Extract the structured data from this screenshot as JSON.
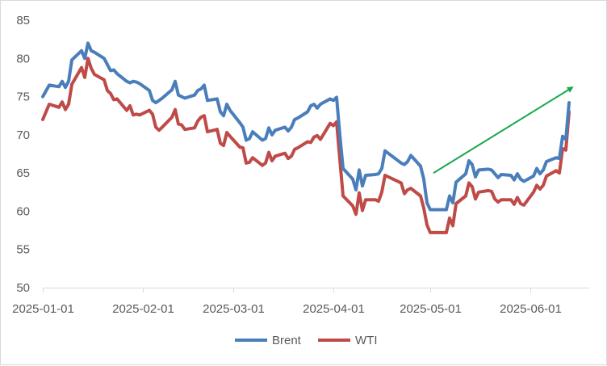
{
  "chart_data": {
    "type": "line",
    "title": "",
    "xlabel": "",
    "ylabel": "",
    "ylim": [
      50,
      85
    ],
    "yticks": [
      50,
      55,
      60,
      65,
      70,
      75,
      80,
      85
    ],
    "xlim": [
      "2025-01-01",
      "2025-06-11"
    ],
    "xticks": [
      "2025-01-01",
      "2025-02-01",
      "2025-03-01",
      "2025-04-01",
      "2025-05-01",
      "2025-06-01"
    ],
    "grid": false,
    "legend": "bottom",
    "series": [
      {
        "name": "Brent",
        "color": "#4a7ebb",
        "points": [
          [
            "2025-01-01",
            75.0
          ],
          [
            "2025-01-03",
            76.5
          ],
          [
            "2025-01-06",
            76.3
          ],
          [
            "2025-01-07",
            77.0
          ],
          [
            "2025-01-08",
            76.2
          ],
          [
            "2025-01-09",
            77.0
          ],
          [
            "2025-01-10",
            79.8
          ],
          [
            "2025-01-13",
            81.0
          ],
          [
            "2025-01-14",
            80.0
          ],
          [
            "2025-01-15",
            82.0
          ],
          [
            "2025-01-16",
            81.0
          ],
          [
            "2025-01-17",
            80.8
          ],
          [
            "2025-01-20",
            80.0
          ],
          [
            "2025-01-21",
            79.2
          ],
          [
            "2025-01-22",
            78.4
          ],
          [
            "2025-01-23",
            78.5
          ],
          [
            "2025-01-24",
            78.0
          ],
          [
            "2025-01-27",
            77.0
          ],
          [
            "2025-01-28",
            76.8
          ],
          [
            "2025-01-29",
            77.0
          ],
          [
            "2025-01-30",
            76.9
          ],
          [
            "2025-01-31",
            76.7
          ],
          [
            "2025-02-03",
            75.8
          ],
          [
            "2025-02-04",
            74.5
          ],
          [
            "2025-02-05",
            74.2
          ],
          [
            "2025-02-06",
            74.5
          ],
          [
            "2025-02-07",
            74.8
          ],
          [
            "2025-02-10",
            75.9
          ],
          [
            "2025-02-11",
            77.0
          ],
          [
            "2025-02-12",
            75.2
          ],
          [
            "2025-02-13",
            75.0
          ],
          [
            "2025-02-14",
            74.8
          ],
          [
            "2025-02-17",
            75.2
          ],
          [
            "2025-02-18",
            75.8
          ],
          [
            "2025-02-19",
            76.0
          ],
          [
            "2025-02-20",
            76.5
          ],
          [
            "2025-02-21",
            74.5
          ],
          [
            "2025-02-24",
            74.7
          ],
          [
            "2025-02-25",
            73.0
          ],
          [
            "2025-02-26",
            72.5
          ],
          [
            "2025-02-27",
            74.0
          ],
          [
            "2025-02-28",
            73.2
          ],
          [
            "2025-03-03",
            71.6
          ],
          [
            "2025-03-04",
            71.0
          ],
          [
            "2025-03-05",
            69.3
          ],
          [
            "2025-03-06",
            69.5
          ],
          [
            "2025-03-07",
            70.4
          ],
          [
            "2025-03-10",
            69.3
          ],
          [
            "2025-03-11",
            69.5
          ],
          [
            "2025-03-12",
            70.9
          ],
          [
            "2025-03-13",
            70.0
          ],
          [
            "2025-03-14",
            70.6
          ],
          [
            "2025-03-17",
            71.0
          ],
          [
            "2025-03-18",
            70.5
          ],
          [
            "2025-03-19",
            71.0
          ],
          [
            "2025-03-20",
            72.0
          ],
          [
            "2025-03-21",
            72.2
          ],
          [
            "2025-03-24",
            73.0
          ],
          [
            "2025-03-25",
            73.8
          ],
          [
            "2025-03-26",
            74.0
          ],
          [
            "2025-03-27",
            73.5
          ],
          [
            "2025-03-28",
            74.0
          ],
          [
            "2025-03-31",
            74.7
          ],
          [
            "2025-04-01",
            74.5
          ],
          [
            "2025-04-02",
            74.9
          ],
          [
            "2025-04-03",
            70.0
          ],
          [
            "2025-04-04",
            65.6
          ],
          [
            "2025-04-07",
            64.2
          ],
          [
            "2025-04-08",
            62.8
          ],
          [
            "2025-04-09",
            65.4
          ],
          [
            "2025-04-10",
            63.3
          ],
          [
            "2025-04-11",
            64.7
          ],
          [
            "2025-04-14",
            64.8
          ],
          [
            "2025-04-15",
            64.9
          ],
          [
            "2025-04-16",
            65.6
          ],
          [
            "2025-04-17",
            67.9
          ],
          [
            "2025-04-22",
            66.3
          ],
          [
            "2025-04-23",
            66.1
          ],
          [
            "2025-04-24",
            66.5
          ],
          [
            "2025-04-25",
            67.3
          ],
          [
            "2025-04-28",
            65.9
          ],
          [
            "2025-04-29",
            64.2
          ],
          [
            "2025-04-30",
            61.1
          ],
          [
            "2025-05-01",
            60.2
          ],
          [
            "2025-05-02",
            60.2
          ],
          [
            "2025-05-05",
            60.2
          ],
          [
            "2025-05-06",
            60.2
          ],
          [
            "2025-05-07",
            62.0
          ],
          [
            "2025-05-08",
            61.1
          ],
          [
            "2025-05-09",
            63.8
          ],
          [
            "2025-05-12",
            64.9
          ],
          [
            "2025-05-13",
            66.6
          ],
          [
            "2025-05-14",
            66.1
          ],
          [
            "2025-05-15",
            64.5
          ],
          [
            "2025-05-16",
            65.4
          ],
          [
            "2025-05-19",
            65.5
          ],
          [
            "2025-05-20",
            65.4
          ],
          [
            "2025-05-21",
            64.9
          ],
          [
            "2025-05-22",
            64.4
          ],
          [
            "2025-05-23",
            64.8
          ],
          [
            "2025-05-26",
            64.7
          ],
          [
            "2025-05-27",
            64.1
          ],
          [
            "2025-05-28",
            64.9
          ],
          [
            "2025-05-29",
            64.2
          ],
          [
            "2025-05-30",
            63.9
          ],
          [
            "2025-06-02",
            64.6
          ],
          [
            "2025-06-03",
            65.6
          ],
          [
            "2025-06-04",
            64.9
          ],
          [
            "2025-06-05",
            65.4
          ],
          [
            "2025-06-06",
            66.5
          ],
          [
            "2025-06-09",
            67.0
          ],
          [
            "2025-06-10",
            66.9
          ],
          [
            "2025-06-11",
            69.8
          ],
          [
            "2025-06-12",
            69.4
          ],
          [
            "2025-06-13",
            74.2
          ]
        ]
      },
      {
        "name": "WTI",
        "color": "#be4b48",
        "points": [
          [
            "2025-01-01",
            72.0
          ],
          [
            "2025-01-03",
            74.0
          ],
          [
            "2025-01-06",
            73.6
          ],
          [
            "2025-01-07",
            74.3
          ],
          [
            "2025-01-08",
            73.3
          ],
          [
            "2025-01-09",
            74.0
          ],
          [
            "2025-01-10",
            76.6
          ],
          [
            "2025-01-13",
            78.8
          ],
          [
            "2025-01-14",
            77.5
          ],
          [
            "2025-01-15",
            80.0
          ],
          [
            "2025-01-16",
            78.7
          ],
          [
            "2025-01-17",
            77.9
          ],
          [
            "2025-01-20",
            77.2
          ],
          [
            "2025-01-21",
            75.8
          ],
          [
            "2025-01-22",
            75.4
          ],
          [
            "2025-01-23",
            74.6
          ],
          [
            "2025-01-24",
            74.7
          ],
          [
            "2025-01-27",
            73.2
          ],
          [
            "2025-01-28",
            73.8
          ],
          [
            "2025-01-29",
            72.6
          ],
          [
            "2025-01-30",
            72.7
          ],
          [
            "2025-01-31",
            72.6
          ],
          [
            "2025-02-03",
            73.2
          ],
          [
            "2025-02-04",
            72.7
          ],
          [
            "2025-02-05",
            71.0
          ],
          [
            "2025-02-06",
            70.6
          ],
          [
            "2025-02-07",
            71.0
          ],
          [
            "2025-02-10",
            72.3
          ],
          [
            "2025-02-11",
            73.3
          ],
          [
            "2025-02-12",
            71.4
          ],
          [
            "2025-02-13",
            71.3
          ],
          [
            "2025-02-14",
            70.7
          ],
          [
            "2025-02-17",
            70.9
          ],
          [
            "2025-02-18",
            71.8
          ],
          [
            "2025-02-19",
            72.3
          ],
          [
            "2025-02-20",
            72.5
          ],
          [
            "2025-02-21",
            70.4
          ],
          [
            "2025-02-24",
            70.7
          ],
          [
            "2025-02-25",
            68.9
          ],
          [
            "2025-02-26",
            68.6
          ],
          [
            "2025-02-27",
            70.3
          ],
          [
            "2025-02-28",
            69.8
          ],
          [
            "2025-03-03",
            68.4
          ],
          [
            "2025-03-04",
            68.3
          ],
          [
            "2025-03-05",
            66.3
          ],
          [
            "2025-03-06",
            66.4
          ],
          [
            "2025-03-07",
            67.0
          ],
          [
            "2025-03-10",
            66.0
          ],
          [
            "2025-03-11",
            66.3
          ],
          [
            "2025-03-12",
            67.7
          ],
          [
            "2025-03-13",
            66.6
          ],
          [
            "2025-03-14",
            67.2
          ],
          [
            "2025-03-17",
            67.6
          ],
          [
            "2025-03-18",
            66.9
          ],
          [
            "2025-03-19",
            67.2
          ],
          [
            "2025-03-20",
            68.1
          ],
          [
            "2025-03-21",
            68.3
          ],
          [
            "2025-03-24",
            69.1
          ],
          [
            "2025-03-25",
            69.0
          ],
          [
            "2025-03-26",
            69.7
          ],
          [
            "2025-03-27",
            69.9
          ],
          [
            "2025-03-28",
            69.4
          ],
          [
            "2025-03-31",
            71.5
          ],
          [
            "2025-04-01",
            71.2
          ],
          [
            "2025-04-02",
            71.7
          ],
          [
            "2025-04-03",
            66.8
          ],
          [
            "2025-04-04",
            62.0
          ],
          [
            "2025-04-07",
            60.7
          ],
          [
            "2025-04-08",
            59.6
          ],
          [
            "2025-04-09",
            62.4
          ],
          [
            "2025-04-10",
            60.1
          ],
          [
            "2025-04-11",
            61.5
          ],
          [
            "2025-04-14",
            61.5
          ],
          [
            "2025-04-15",
            61.3
          ],
          [
            "2025-04-16",
            62.5
          ],
          [
            "2025-04-17",
            64.7
          ],
          [
            "2025-04-22",
            63.7
          ],
          [
            "2025-04-23",
            62.3
          ],
          [
            "2025-04-24",
            62.8
          ],
          [
            "2025-04-25",
            63.0
          ],
          [
            "2025-04-28",
            62.0
          ],
          [
            "2025-04-29",
            60.4
          ],
          [
            "2025-04-30",
            58.2
          ],
          [
            "2025-05-01",
            57.2
          ],
          [
            "2025-05-02",
            57.2
          ],
          [
            "2025-05-05",
            57.2
          ],
          [
            "2025-05-06",
            57.2
          ],
          [
            "2025-05-07",
            59.1
          ],
          [
            "2025-05-08",
            58.1
          ],
          [
            "2025-05-09",
            61.0
          ],
          [
            "2025-05-12",
            62.0
          ],
          [
            "2025-05-13",
            63.7
          ],
          [
            "2025-05-14",
            63.2
          ],
          [
            "2025-05-15",
            61.6
          ],
          [
            "2025-05-16",
            62.5
          ],
          [
            "2025-05-19",
            62.7
          ],
          [
            "2025-05-20",
            62.6
          ],
          [
            "2025-05-21",
            61.6
          ],
          [
            "2025-05-22",
            61.2
          ],
          [
            "2025-05-23",
            61.5
          ],
          [
            "2025-05-26",
            61.5
          ],
          [
            "2025-05-27",
            60.9
          ],
          [
            "2025-05-28",
            61.8
          ],
          [
            "2025-05-29",
            61.0
          ],
          [
            "2025-05-30",
            60.8
          ],
          [
            "2025-06-02",
            62.5
          ],
          [
            "2025-06-03",
            63.4
          ],
          [
            "2025-06-04",
            62.9
          ],
          [
            "2025-06-05",
            63.4
          ],
          [
            "2025-06-06",
            64.6
          ],
          [
            "2025-06-09",
            65.3
          ],
          [
            "2025-06-10",
            65.0
          ],
          [
            "2025-06-11",
            68.2
          ],
          [
            "2025-06-12",
            68.0
          ],
          [
            "2025-06-13",
            73.0
          ]
        ]
      }
    ],
    "annotations": [
      {
        "type": "arrow",
        "color": "#1aa84e",
        "from": [
          "2025-05-02",
          65.0
        ],
        "to": [
          "2025-06-14",
          76.2
        ]
      }
    ]
  }
}
